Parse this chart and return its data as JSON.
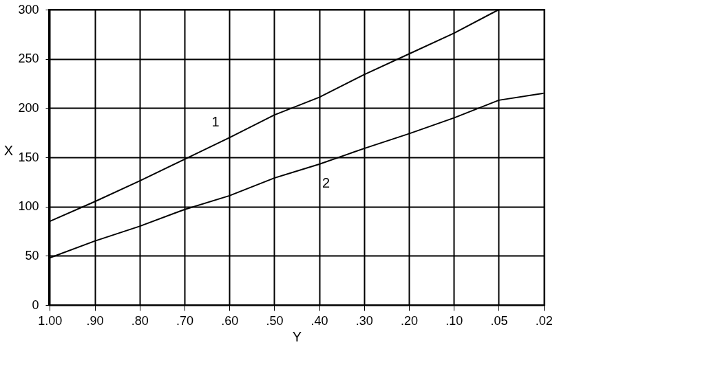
{
  "chart_data": {
    "type": "line",
    "xlabel": "Y",
    "ylabel": "X",
    "categories": [
      "1.00",
      ".90",
      ".80",
      ".70",
      ".60",
      ".50",
      ".40",
      ".30",
      ".20",
      ".10",
      ".05",
      ".02"
    ],
    "series": [
      {
        "name": "1",
        "color": "#000000",
        "values": [
          85,
          105,
          126,
          148,
          170,
          193,
          211,
          234,
          255,
          276,
          300,
          null
        ]
      },
      {
        "name": "2",
        "color": "#000000",
        "values": [
          48,
          65,
          80,
          97,
          111,
          129,
          143,
          159,
          174,
          190,
          208,
          215
        ]
      }
    ],
    "ylim": [
      0,
      300
    ],
    "yticks": [
      0,
      50,
      100,
      150,
      200,
      250,
      300
    ],
    "grid": true,
    "legend": false,
    "marker": "none",
    "line_style": "solid"
  }
}
